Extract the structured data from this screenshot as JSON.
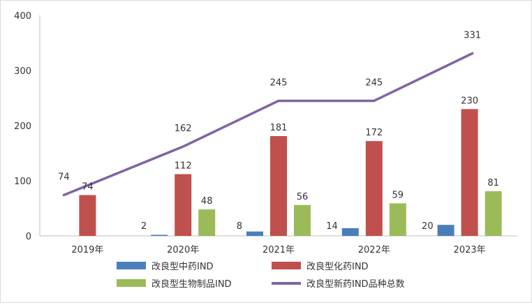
{
  "chart_data": {
    "type": "bar",
    "categories": [
      "2019年",
      "2020年",
      "2021年",
      "2022年",
      "2023年"
    ],
    "ylim": [
      0,
      400
    ],
    "yticks": [
      0,
      100,
      200,
      300,
      400
    ],
    "grid": false,
    "legend_position": "bottom",
    "series": [
      {
        "name": "改良型中药IND",
        "kind": "bar",
        "color": "#4a7ebb",
        "values": [
          null,
          2,
          8,
          14,
          20
        ]
      },
      {
        "name": "改良型化药IND",
        "kind": "bar",
        "color": "#c0504d",
        "values": [
          74,
          112,
          181,
          172,
          230
        ]
      },
      {
        "name": "改良型生物制品IND",
        "kind": "bar",
        "color": "#9bbb59",
        "values": [
          null,
          48,
          56,
          59,
          81
        ]
      },
      {
        "name": "改良型新药IND品种总数",
        "kind": "line",
        "color": "#8064a2",
        "values": [
          74,
          162,
          245,
          245,
          331
        ]
      }
    ]
  },
  "labels": {
    "y_ticks": [
      "0",
      "100",
      "200",
      "300",
      "400"
    ],
    "categories": [
      "2019年",
      "2020年",
      "2021年",
      "2022年",
      "2023年"
    ],
    "legend": [
      "改良型中药IND",
      "改良型化药IND",
      "改良型生物制品IND",
      "改良型新药IND品种总数"
    ]
  }
}
